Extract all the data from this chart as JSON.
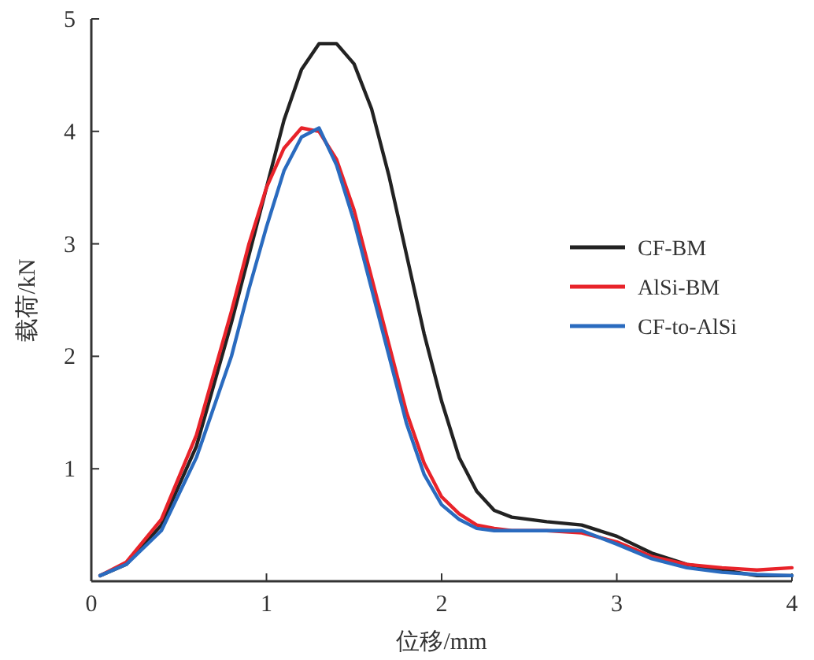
{
  "chart_data": {
    "type": "line",
    "xlabel": "位移/mm",
    "ylabel": "载荷/kN",
    "xlim": [
      0,
      4
    ],
    "xticks": [
      0,
      1,
      2,
      3,
      4
    ],
    "ylim": [
      0,
      5
    ],
    "yticks": [
      1,
      2,
      3,
      4,
      5
    ],
    "grid": false,
    "legend": "right",
    "marker": "none",
    "line_style": "solid",
    "x": [
      0.05,
      0.2,
      0.4,
      0.6,
      0.8,
      0.9,
      1.0,
      1.1,
      1.2,
      1.3,
      1.4,
      1.5,
      1.6,
      1.7,
      1.8,
      1.9,
      2.0,
      2.1,
      2.2,
      2.3,
      2.4,
      2.6,
      2.8,
      3.0,
      3.2,
      3.4,
      3.6,
      3.8,
      4.0
    ],
    "series": [
      {
        "name": "CF-BM",
        "color": "#222222",
        "values": [
          0.05,
          0.15,
          0.5,
          1.2,
          2.3,
          2.9,
          3.5,
          4.1,
          4.55,
          4.78,
          4.78,
          4.6,
          4.2,
          3.6,
          2.9,
          2.2,
          1.6,
          1.1,
          0.8,
          0.63,
          0.57,
          0.53,
          0.5,
          0.4,
          0.25,
          0.15,
          0.1,
          0.05,
          0.05
        ]
      },
      {
        "name": "AlSi-BM",
        "color": "#e8232a",
        "values": [
          0.05,
          0.17,
          0.55,
          1.3,
          2.4,
          3.0,
          3.5,
          3.85,
          4.03,
          4.0,
          3.75,
          3.3,
          2.7,
          2.1,
          1.5,
          1.05,
          0.75,
          0.6,
          0.5,
          0.47,
          0.45,
          0.45,
          0.43,
          0.35,
          0.22,
          0.15,
          0.12,
          0.1,
          0.12
        ]
      },
      {
        "name": "CF-to-AlSi",
        "color": "#2a6bbf",
        "values": [
          0.05,
          0.15,
          0.45,
          1.1,
          2.0,
          2.6,
          3.15,
          3.65,
          3.95,
          4.03,
          3.7,
          3.2,
          2.6,
          2.0,
          1.4,
          0.95,
          0.68,
          0.55,
          0.47,
          0.45,
          0.45,
          0.45,
          0.45,
          0.33,
          0.2,
          0.12,
          0.08,
          0.06,
          0.05
        ]
      }
    ]
  }
}
